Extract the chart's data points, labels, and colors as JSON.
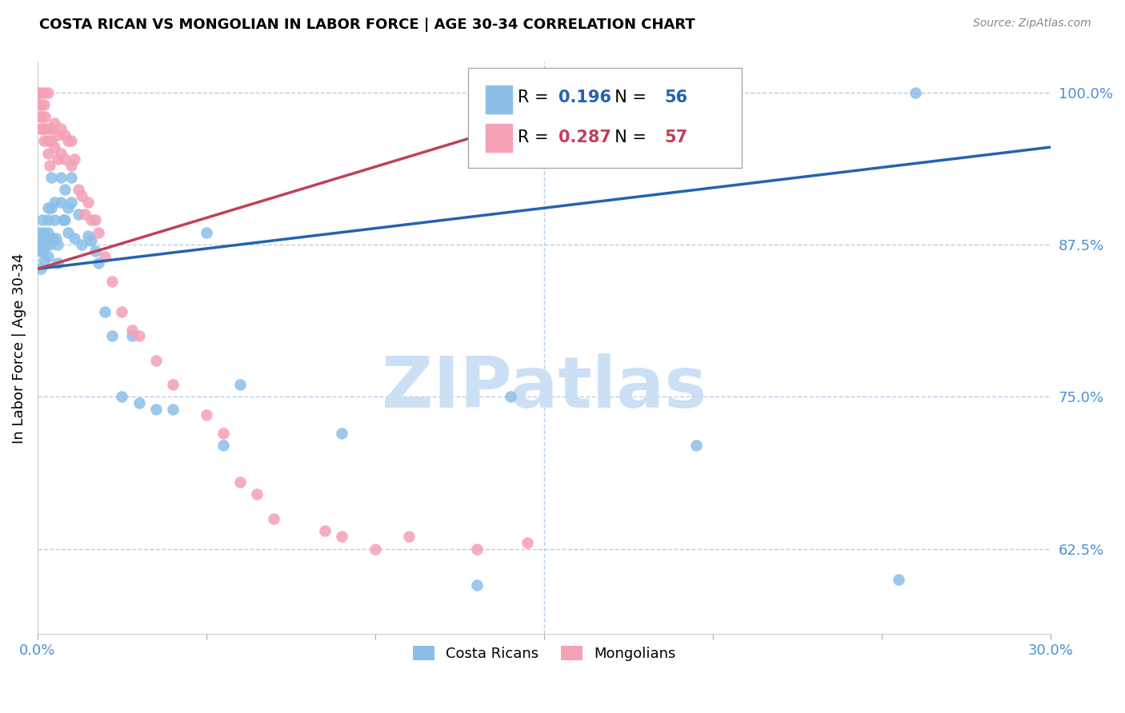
{
  "title": "COSTA RICAN VS MONGOLIAN IN LABOR FORCE | AGE 30-34 CORRELATION CHART",
  "source": "Source: ZipAtlas.com",
  "ylabel": "In Labor Force | Age 30-34",
  "legend_label_blue": "Costa Ricans",
  "legend_label_pink": "Mongolians",
  "blue_R": "0.196",
  "blue_N": "56",
  "pink_R": "0.287",
  "pink_N": "57",
  "xlim": [
    0.0,
    0.3
  ],
  "ylim": [
    0.555,
    1.025
  ],
  "yticks": [
    0.625,
    0.75,
    0.875,
    1.0
  ],
  "ytick_labels": [
    "62.5%",
    "75.0%",
    "87.5%",
    "100.0%"
  ],
  "xticks": [
    0.0,
    0.05,
    0.1,
    0.15,
    0.2,
    0.25,
    0.3
  ],
  "xtick_labels": [
    "0.0%",
    "",
    "",
    "",
    "",
    "",
    "30.0%"
  ],
  "blue_color": "#8bbfe8",
  "pink_color": "#f4a0b5",
  "blue_line_color": "#2563ae",
  "pink_line_color": "#c0405a",
  "axis_color": "#4a90d9",
  "grid_color": "#b8cfe8",
  "watermark_color": "#cce0f5",
  "blue_line_x0": 0.0,
  "blue_line_y0": 0.855,
  "blue_line_x1": 0.3,
  "blue_line_y1": 0.955,
  "pink_line_x0": 0.0,
  "pink_line_y0": 0.855,
  "pink_line_x1": 0.155,
  "pink_line_y1": 0.985,
  "blue_scatter_x": [
    0.0005,
    0.0008,
    0.001,
    0.001,
    0.0012,
    0.0015,
    0.0018,
    0.002,
    0.002,
    0.0022,
    0.0025,
    0.003,
    0.003,
    0.003,
    0.0032,
    0.0035,
    0.004,
    0.004,
    0.0042,
    0.005,
    0.005,
    0.0055,
    0.006,
    0.006,
    0.007,
    0.007,
    0.0075,
    0.008,
    0.008,
    0.009,
    0.009,
    0.01,
    0.01,
    0.011,
    0.012,
    0.013,
    0.015,
    0.016,
    0.017,
    0.018,
    0.02,
    0.022,
    0.025,
    0.028,
    0.03,
    0.035,
    0.04,
    0.05,
    0.055,
    0.06,
    0.09,
    0.13,
    0.14,
    0.195,
    0.255,
    0.26
  ],
  "blue_scatter_y": [
    0.885,
    0.875,
    0.87,
    0.855,
    0.88,
    0.895,
    0.87,
    0.885,
    0.862,
    0.88,
    0.875,
    0.905,
    0.885,
    0.865,
    0.895,
    0.875,
    0.93,
    0.905,
    0.88,
    0.91,
    0.895,
    0.88,
    0.875,
    0.86,
    0.93,
    0.91,
    0.895,
    0.92,
    0.895,
    0.905,
    0.885,
    0.93,
    0.91,
    0.88,
    0.9,
    0.875,
    0.882,
    0.878,
    0.87,
    0.86,
    0.82,
    0.8,
    0.75,
    0.8,
    0.745,
    0.74,
    0.74,
    0.885,
    0.71,
    0.76,
    0.72,
    0.595,
    0.75,
    0.71,
    0.6,
    1.0
  ],
  "pink_scatter_x": [
    0.0003,
    0.0005,
    0.0007,
    0.001,
    0.001,
    0.001,
    0.0012,
    0.0015,
    0.002,
    0.002,
    0.002,
    0.0022,
    0.0025,
    0.003,
    0.003,
    0.003,
    0.0032,
    0.0035,
    0.004,
    0.004,
    0.005,
    0.005,
    0.006,
    0.006,
    0.007,
    0.007,
    0.008,
    0.008,
    0.009,
    0.01,
    0.01,
    0.011,
    0.012,
    0.013,
    0.014,
    0.015,
    0.016,
    0.017,
    0.018,
    0.02,
    0.022,
    0.025,
    0.028,
    0.03,
    0.035,
    0.04,
    0.05,
    0.055,
    0.06,
    0.065,
    0.07,
    0.085,
    0.09,
    0.1,
    0.11,
    0.13,
    0.145
  ],
  "pink_scatter_y": [
    1.0,
    0.99,
    0.98,
    1.0,
    0.99,
    0.97,
    0.98,
    0.97,
    1.0,
    0.99,
    0.96,
    0.98,
    0.97,
    1.0,
    0.97,
    0.95,
    0.96,
    0.94,
    0.97,
    0.96,
    0.975,
    0.955,
    0.965,
    0.945,
    0.97,
    0.95,
    0.965,
    0.945,
    0.96,
    0.96,
    0.94,
    0.945,
    0.92,
    0.915,
    0.9,
    0.91,
    0.895,
    0.895,
    0.885,
    0.865,
    0.845,
    0.82,
    0.805,
    0.8,
    0.78,
    0.76,
    0.735,
    0.72,
    0.68,
    0.67,
    0.65,
    0.64,
    0.635,
    0.625,
    0.635,
    0.625,
    0.63
  ]
}
